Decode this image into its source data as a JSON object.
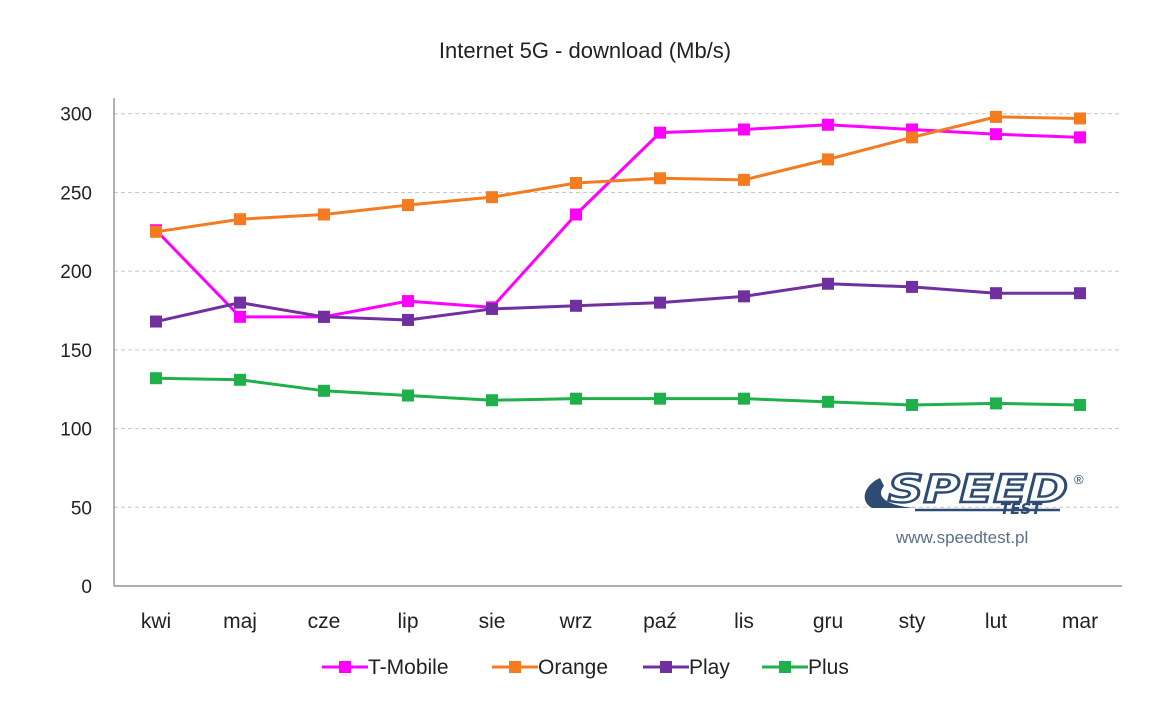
{
  "chart_data": {
    "type": "line",
    "title": "Internet 5G - download (Mb/s)",
    "xlabel": "",
    "ylabel": "",
    "categories": [
      "kwi",
      "maj",
      "cze",
      "lip",
      "sie",
      "wrz",
      "paź",
      "lis",
      "gru",
      "sty",
      "lut",
      "mar"
    ],
    "ylim": [
      0,
      310
    ],
    "yticks": [
      0,
      50,
      100,
      150,
      200,
      250,
      300
    ],
    "grid": true,
    "legend_position": "bottom",
    "series": [
      {
        "name": "T-Mobile",
        "color": "#ff00ff",
        "values": [
          226,
          171,
          171,
          181,
          177,
          236,
          288,
          290,
          293,
          290,
          287,
          285
        ]
      },
      {
        "name": "Orange",
        "color": "#f47b20",
        "values": [
          225,
          233,
          236,
          242,
          247,
          256,
          259,
          258,
          271,
          285,
          298,
          297
        ]
      },
      {
        "name": "Play",
        "color": "#7030a0",
        "values": [
          168,
          180,
          171,
          169,
          176,
          178,
          180,
          184,
          192,
          190,
          186,
          186
        ]
      },
      {
        "name": "Plus",
        "color": "#1fb04c",
        "values": [
          132,
          131,
          124,
          121,
          118,
          119,
          119,
          119,
          117,
          115,
          116,
          115
        ]
      }
    ]
  },
  "watermark": {
    "logo_word": "SPEED",
    "logo_sub": "TEST",
    "registered": "®",
    "url": "www.speedtest.pl",
    "logo_color": "#2d4b73"
  }
}
